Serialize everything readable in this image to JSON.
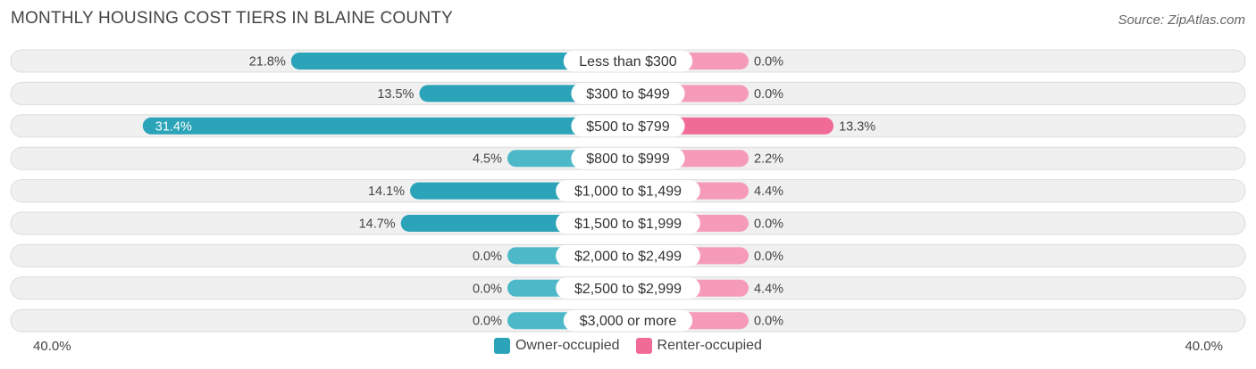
{
  "title": "MONTHLY HOUSING COST TIERS IN BLAINE COUNTY",
  "source": "Source: ZipAtlas.com",
  "colors": {
    "owner": "#4DB8C8",
    "owner_strong": "#2BA3B8",
    "renter": "#F59AB8",
    "renter_strong": "#F06B96",
    "row_bg": "#F0F0F0",
    "row_border": "#DCDCDC"
  },
  "chart_data": {
    "type": "bar",
    "orientation": "horizontal-diverging",
    "categories": [
      "Less than $300",
      "$300 to $499",
      "$500 to $799",
      "$800 to $999",
      "$1,000 to $1,499",
      "$1,500 to $1,999",
      "$2,000 to $2,499",
      "$2,500 to $2,999",
      "$3,000 or more"
    ],
    "series": [
      {
        "name": "Owner-occupied",
        "values": [
          21.8,
          13.5,
          31.4,
          4.5,
          14.1,
          14.7,
          0.0,
          0.0,
          0.0
        ],
        "labels": [
          "21.8%",
          "13.5%",
          "31.4%",
          "4.5%",
          "14.1%",
          "14.7%",
          "0.0%",
          "0.0%",
          "0.0%"
        ]
      },
      {
        "name": "Renter-occupied",
        "values": [
          0.0,
          0.0,
          13.3,
          2.2,
          4.4,
          0.0,
          0.0,
          4.4,
          0.0
        ],
        "labels": [
          "0.0%",
          "0.0%",
          "13.3%",
          "2.2%",
          "4.4%",
          "0.0%",
          "0.0%",
          "4.4%",
          "0.0%"
        ]
      }
    ],
    "xlim": [
      -40,
      40
    ],
    "axis_labels": {
      "left": "40.0%",
      "right": "40.0%"
    },
    "legend_position": "bottom-center"
  }
}
